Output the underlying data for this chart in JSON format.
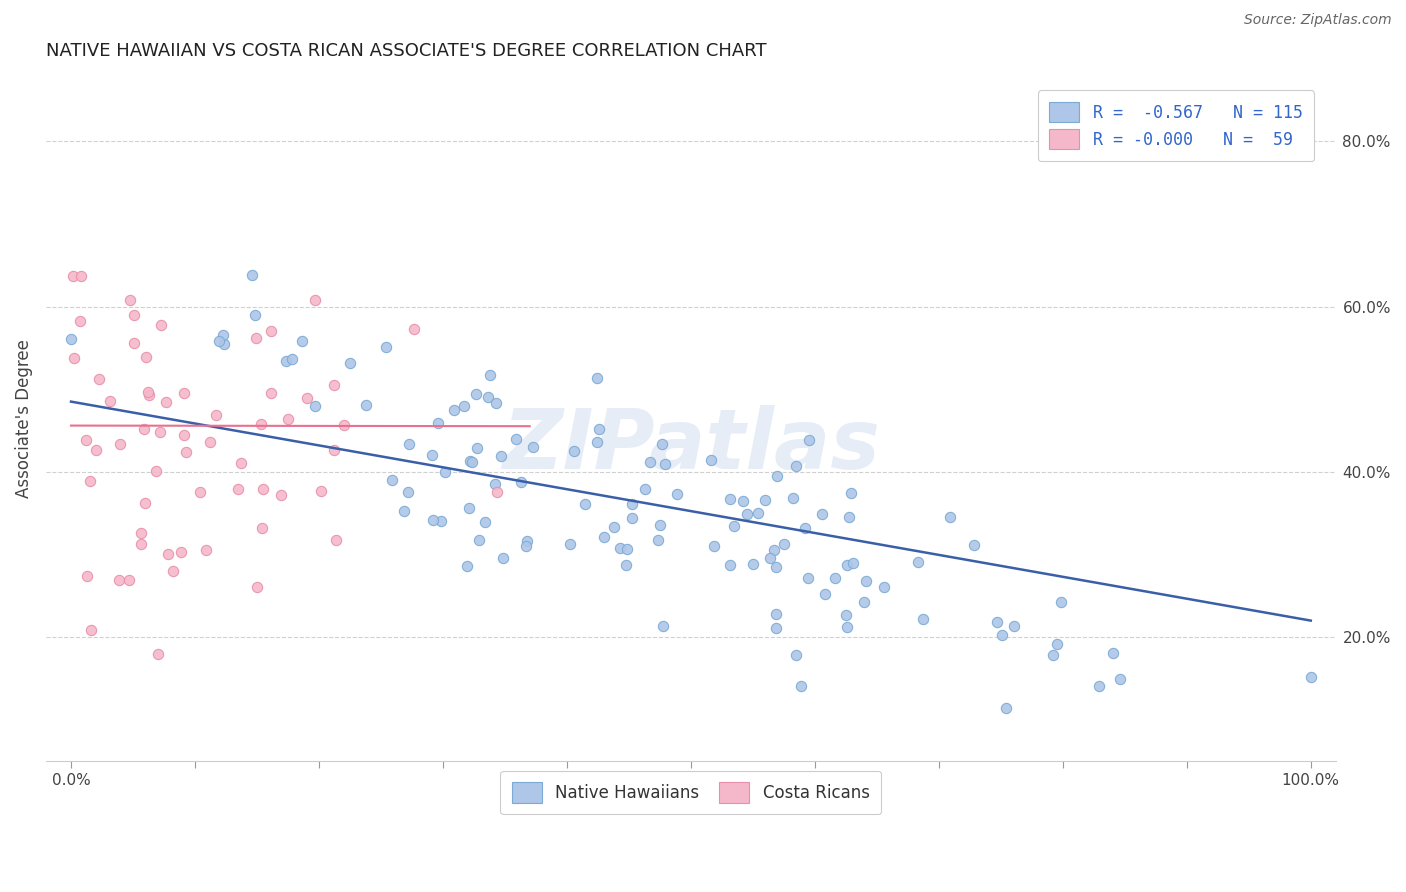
{
  "title": "NATIVE HAWAIIAN VS COSTA RICAN ASSOCIATE'S DEGREE CORRELATION CHART",
  "source_text": "Source: ZipAtlas.com",
  "ylabel": "Associate's Degree",
  "xlim": [
    -0.02,
    1.02
  ],
  "ylim": [
    0.05,
    0.88
  ],
  "xtick_positions": [
    0.0,
    0.1,
    0.2,
    0.3,
    0.4,
    0.5,
    0.6,
    0.7,
    0.8,
    0.9,
    1.0
  ],
  "xtick_labels_show": [
    "0.0%",
    "",
    "",
    "",
    "",
    "",
    "",
    "",
    "",
    "",
    "100.0%"
  ],
  "ytick_values": [
    0.2,
    0.4,
    0.6,
    0.8
  ],
  "ytick_labels": [
    "20.0%",
    "40.0%",
    "60.0%",
    "80.0%"
  ],
  "blue_fill": "#aec6e8",
  "blue_edge": "#7baad4",
  "pink_fill": "#f5b8ca",
  "pink_edge": "#e890aa",
  "blue_line_color": "#3a5fa8",
  "pink_line_color": "#e87090",
  "legend_label_blue": "R =  -0.567   N = 115",
  "legend_label_pink": "R = -0.000   N =  59",
  "watermark": "ZIPatlas",
  "blue_N": 115,
  "pink_N": 59,
  "blue_intercept": 0.485,
  "blue_slope": -0.265,
  "pink_intercept": 0.456,
  "pink_slope": -0.002,
  "background_color": "#ffffff",
  "grid_color": "#d0d0d0",
  "dot_size": 55
}
